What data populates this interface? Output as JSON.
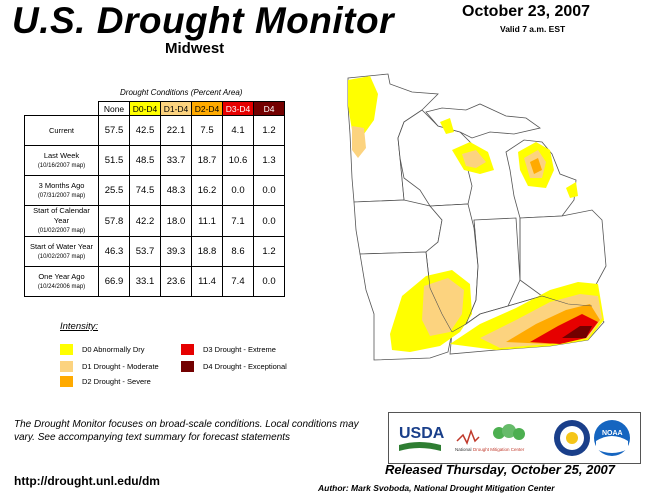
{
  "header": {
    "title": "U.S. Drought Monitor",
    "region": "Midwest",
    "date": "October 23, 2007",
    "valid": "Valid 7 a.m. EST"
  },
  "table": {
    "caption": "Drought Conditions (Percent Area)",
    "columns": [
      "None",
      "D0-D4",
      "D1-D4",
      "D2-D4",
      "D3-D4",
      "D4"
    ],
    "column_colors": [
      "#ffffff",
      "#ffff00",
      "#fcd37f",
      "#ffaa00",
      "#e60000",
      "#730000"
    ],
    "rows": [
      {
        "label": "Current",
        "sub": "",
        "values": [
          "57.5",
          "42.5",
          "22.1",
          "7.5",
          "4.1",
          "1.2"
        ]
      },
      {
        "label": "Last Week",
        "sub": "(10/16/2007 map)",
        "values": [
          "51.5",
          "48.5",
          "33.7",
          "18.7",
          "10.6",
          "1.3"
        ]
      },
      {
        "label": "3 Months Ago",
        "sub": "(07/31/2007 map)",
        "values": [
          "25.5",
          "74.5",
          "48.3",
          "16.2",
          "0.0",
          "0.0"
        ]
      },
      {
        "label": "Start of Calendar Year",
        "sub": "(01/02/2007 map)",
        "values": [
          "57.8",
          "42.2",
          "18.0",
          "11.1",
          "7.1",
          "0.0"
        ]
      },
      {
        "label": "Start of Water Year",
        "sub": "(10/02/2007 map)",
        "values": [
          "46.3",
          "53.7",
          "39.3",
          "18.8",
          "8.6",
          "1.2"
        ]
      },
      {
        "label": "One Year Ago",
        "sub": "(10/24/2006 map)",
        "values": [
          "66.9",
          "33.1",
          "23.6",
          "11.4",
          "7.4",
          "0.0"
        ]
      }
    ]
  },
  "legend": {
    "title": "Intensity:",
    "items": [
      {
        "label": "D0 Abnormally Dry",
        "color": "#ffff00"
      },
      {
        "label": "D1 Drought - Moderate",
        "color": "#fcd37f"
      },
      {
        "label": "D2 Drought - Severe",
        "color": "#ffaa00"
      },
      {
        "label": "D3 Drought - Extreme",
        "color": "#e60000"
      },
      {
        "label": "D4 Drought - Exceptional",
        "color": "#730000"
      }
    ]
  },
  "footer": {
    "note": "The Drought Monitor focuses on broad-scale conditions. Local conditions may vary. See accompanying text summary for forecast statements",
    "url": "http://drought.unl.edu/dm",
    "released": "Released Thursday, October 25, 2007",
    "author": "Author: Mark Svoboda, National Drought Mitigation Center"
  },
  "logos": {
    "usda": "USDA",
    "ndmc_line1": "National",
    "ndmc_line2": "Drought Mitigation Center",
    "noaa": "NOAA"
  }
}
